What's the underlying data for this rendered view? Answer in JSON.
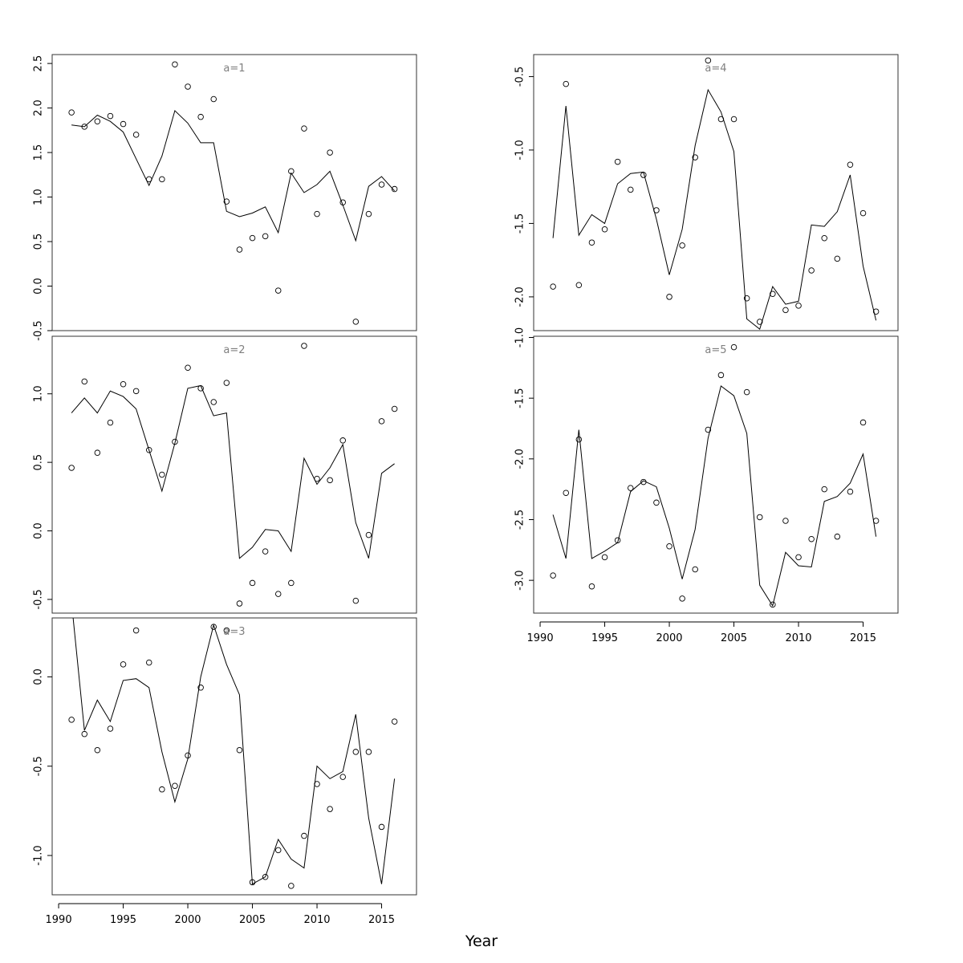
{
  "chart_data": {
    "type": "scatter",
    "xlabel": "Year",
    "x": [
      1991,
      1992,
      1993,
      1994,
      1995,
      1996,
      1997,
      1998,
      1999,
      2000,
      2001,
      2002,
      2003,
      2004,
      2005,
      2006,
      2007,
      2008,
      2009,
      2010,
      2011,
      2012,
      2013,
      2014,
      2015,
      2016
    ],
    "panels": [
      {
        "label": "a=1",
        "ylim": [
          -0.5,
          2.6
        ],
        "yticks": [
          -0.5,
          0.0,
          0.5,
          1.0,
          1.5,
          2.0,
          2.5
        ],
        "ytick_labels": [
          "-0.5",
          "0.0",
          "0.5",
          "1.0",
          "1.5",
          "2.0",
          "2.5"
        ],
        "points": [
          1.95,
          1.79,
          1.85,
          1.91,
          1.82,
          1.7,
          1.2,
          1.2,
          2.49,
          2.24,
          1.9,
          2.1,
          0.95,
          0.41,
          0.54,
          0.56,
          -0.05,
          1.29,
          1.77,
          0.81,
          1.5,
          0.94,
          -0.4,
          0.81,
          1.14,
          1.09
        ],
        "line": [
          1.81,
          1.79,
          1.92,
          1.85,
          1.73,
          1.43,
          1.13,
          1.46,
          1.97,
          1.83,
          1.61,
          1.61,
          0.84,
          0.78,
          0.82,
          0.89,
          0.6,
          1.27,
          1.05,
          1.14,
          1.29,
          0.91,
          0.51,
          1.12,
          1.23,
          1.07
        ]
      },
      {
        "label": "a=2",
        "ylim": [
          -0.6,
          1.42
        ],
        "yticks": [
          -0.5,
          0.0,
          0.5,
          1.0
        ],
        "ytick_labels": [
          "-0.5",
          "0.0",
          "0.5",
          "1.0"
        ],
        "points": [
          0.46,
          1.09,
          0.57,
          0.79,
          1.07,
          1.02,
          0.59,
          0.41,
          0.65,
          1.19,
          1.04,
          0.94,
          1.08,
          -0.53,
          -0.38,
          -0.15,
          -0.46,
          -0.38,
          1.35,
          0.38,
          0.37,
          0.66,
          -0.51,
          -0.03,
          0.8,
          0.89
        ],
        "line": [
          0.86,
          0.97,
          0.86,
          1.02,
          0.98,
          0.89,
          0.59,
          0.29,
          0.64,
          1.04,
          1.06,
          0.84,
          0.86,
          -0.2,
          -0.12,
          0.01,
          0.0,
          -0.15,
          0.53,
          0.34,
          0.46,
          0.63,
          0.06,
          -0.2,
          0.42,
          0.49
        ]
      },
      {
        "label": "a=3",
        "ylim": [
          -1.22,
          0.33
        ],
        "yticks": [
          -1.0,
          -0.5,
          0.0
        ],
        "ytick_labels": [
          "-1.0",
          "-0.5",
          "0.0"
        ],
        "points": [
          -0.24,
          -0.32,
          -0.41,
          -0.29,
          0.07,
          0.26,
          0.08,
          -0.63,
          -0.61,
          -0.44,
          -0.06,
          0.28,
          0.26,
          -0.41,
          -1.15,
          -1.12,
          -0.97,
          -1.17,
          -0.89,
          -0.6,
          -0.74,
          -0.56,
          -0.42,
          -0.42,
          -0.84,
          -0.25
        ],
        "line": [
          0.42,
          -0.3,
          -0.13,
          -0.25,
          -0.02,
          -0.01,
          -0.06,
          -0.42,
          -0.7,
          -0.46,
          0.0,
          0.29,
          0.07,
          -0.1,
          -1.16,
          -1.12,
          -0.91,
          -1.02,
          -1.07,
          -0.5,
          -0.57,
          -0.53,
          -0.21,
          -0.79,
          -1.16,
          -0.57
        ]
      },
      {
        "label": "a=4",
        "ylim": [
          -2.23,
          -0.35
        ],
        "yticks": [
          -2.0,
          -1.5,
          -1.0,
          -0.5
        ],
        "ytick_labels": [
          "-2.0",
          "-1.5",
          "-1.0",
          "-0.5"
        ],
        "points": [
          -1.93,
          -0.55,
          -1.92,
          -1.63,
          -1.54,
          -1.08,
          -1.27,
          -1.17,
          -1.41,
          -2.0,
          -1.65,
          -1.05,
          -0.39,
          -0.79,
          -0.79,
          -2.01,
          -2.17,
          -1.98,
          -2.09,
          -2.06,
          -1.82,
          -1.6,
          -1.74,
          -1.1,
          -1.43,
          -2.1
        ],
        "line": [
          -1.6,
          -0.7,
          -1.58,
          -1.44,
          -1.5,
          -1.23,
          -1.16,
          -1.15,
          -1.47,
          -1.85,
          -1.54,
          -0.97,
          -0.59,
          -0.74,
          -1.01,
          -2.15,
          -2.22,
          -1.93,
          -2.05,
          -2.03,
          -1.51,
          -1.52,
          -1.42,
          -1.17,
          -1.79,
          -2.16
        ]
      },
      {
        "label": "a=5",
        "ylim": [
          -3.27,
          -0.99
        ],
        "yticks": [
          -3.0,
          -2.5,
          -2.0,
          -1.5,
          -1.0
        ],
        "ytick_labels": [
          "-3.0",
          "-2.5",
          "-2.0",
          "-1.5",
          "-1.0"
        ],
        "points": [
          -2.96,
          -2.28,
          -1.84,
          -3.05,
          -2.81,
          -2.67,
          -2.24,
          -2.19,
          -2.36,
          -2.72,
          -3.15,
          -2.91,
          -1.76,
          -1.31,
          -1.08,
          -1.45,
          -2.48,
          -3.2,
          -2.51,
          -2.81,
          -2.66,
          -2.25,
          -2.64,
          -2.27,
          -1.7,
          -2.51
        ],
        "line": [
          -2.46,
          -2.82,
          -1.76,
          -2.82,
          -2.76,
          -2.69,
          -2.27,
          -2.18,
          -2.23,
          -2.57,
          -2.99,
          -2.58,
          -1.83,
          -1.4,
          -1.48,
          -1.79,
          -3.04,
          -3.21,
          -2.77,
          -2.88,
          -2.89,
          -2.35,
          -2.31,
          -2.2,
          -1.96,
          -2.64
        ]
      }
    ],
    "x_axis": {
      "xlim": [
        1989.5,
        2017.7
      ],
      "ticks": [
        1990,
        1995,
        2000,
        2005,
        2010,
        2015
      ],
      "tick_labels": [
        "1990",
        "1995",
        "2000",
        "2005",
        "2010",
        "2015"
      ]
    },
    "grid": false,
    "legend": "none"
  }
}
